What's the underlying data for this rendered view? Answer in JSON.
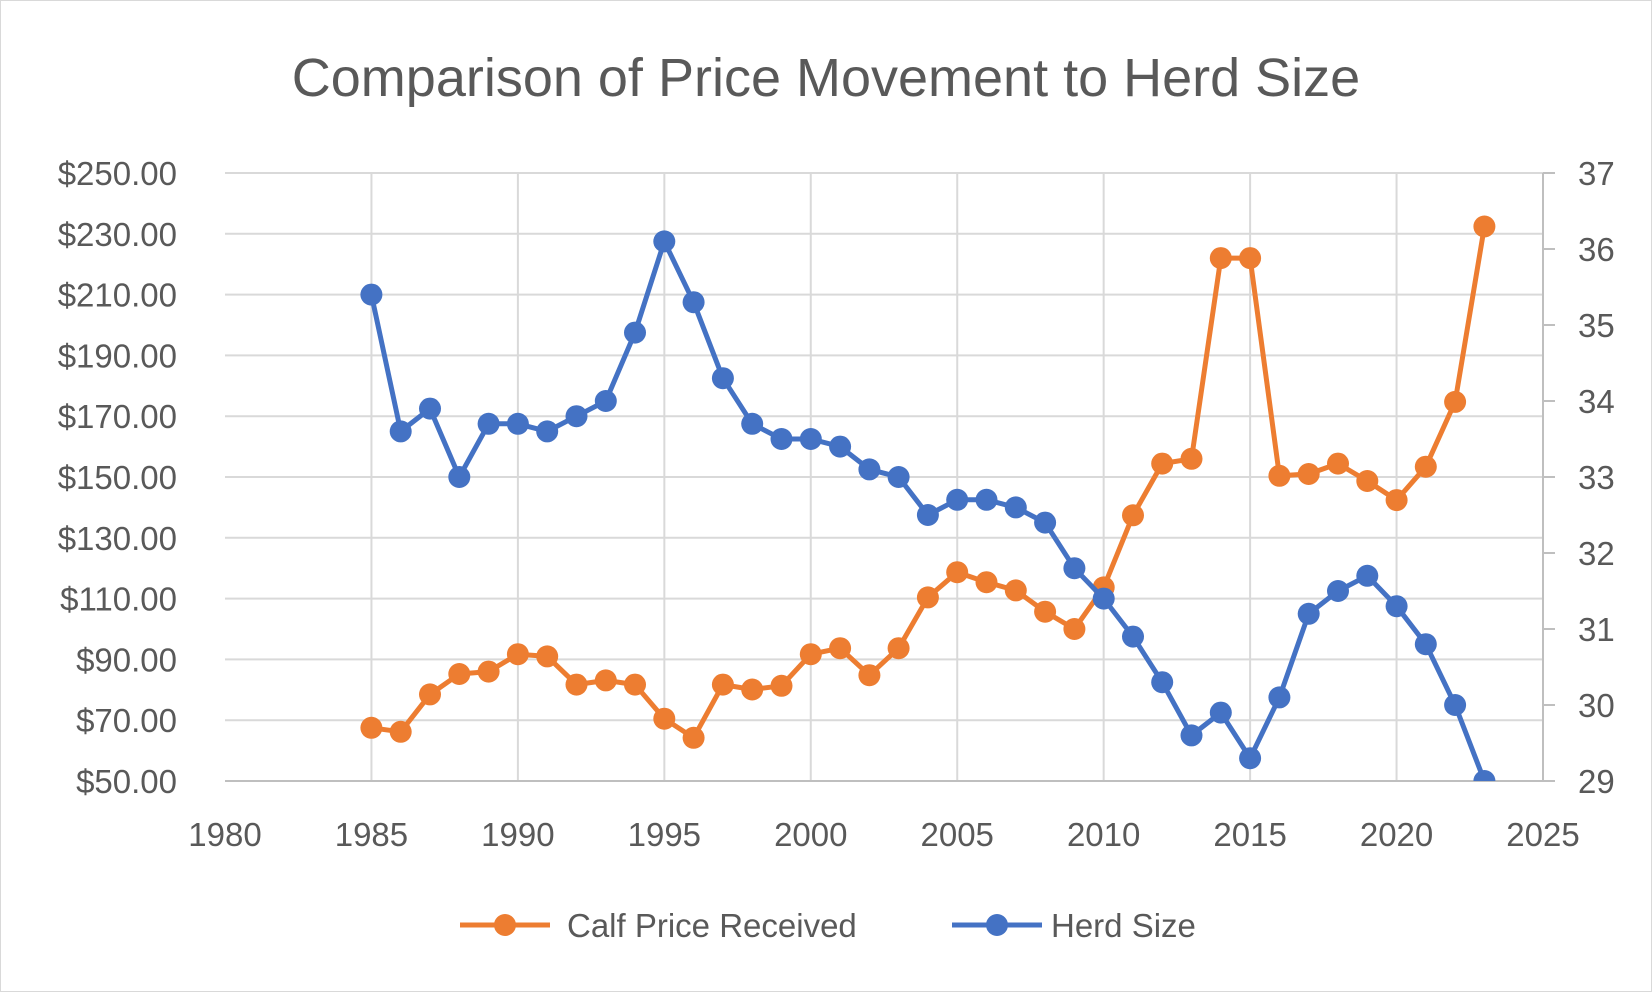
{
  "chart_data": {
    "type": "line",
    "title": "Comparison of Price Movement to Herd Size",
    "x_range": [
      1980,
      2025
    ],
    "x_ticks": [
      1980,
      1985,
      1990,
      1995,
      2000,
      2005,
      2010,
      2015,
      2020,
      2025
    ],
    "y_left": {
      "range": [
        50,
        250
      ],
      "ticks": [
        "$250.00",
        "$230.00",
        "$210.00",
        "$190.00",
        "$170.00",
        "$150.00",
        "$130.00",
        "$110.00",
        "$90.00",
        "$70.00",
        "$50.00"
      ]
    },
    "y_right": {
      "range": [
        29,
        37
      ],
      "ticks": [
        "37",
        "36",
        "35",
        "34",
        "33",
        "32",
        "31",
        "30",
        "29"
      ]
    },
    "grid": true,
    "legend_position": "bottom",
    "series": [
      {
        "name": "Calf Price Received",
        "axis": "left",
        "color": "#ED7D31",
        "points": [
          [
            1985,
            67.5
          ],
          [
            1986,
            66.2
          ],
          [
            1987,
            78.5
          ],
          [
            1988,
            85.2
          ],
          [
            1989,
            86.0
          ],
          [
            1990,
            91.7
          ],
          [
            1991,
            91.0
          ],
          [
            1992,
            81.7
          ],
          [
            1993,
            83.1
          ],
          [
            1994,
            81.7
          ],
          [
            1995,
            70.5
          ],
          [
            1996,
            64.2
          ],
          [
            1997,
            81.7
          ],
          [
            1998,
            80.1
          ],
          [
            1999,
            81.3
          ],
          [
            2000,
            91.7
          ],
          [
            2001,
            93.7
          ],
          [
            2002,
            84.8
          ],
          [
            2003,
            93.7
          ],
          [
            2004,
            110.4
          ],
          [
            2005,
            118.7
          ],
          [
            2006,
            115.4
          ],
          [
            2007,
            112.7
          ],
          [
            2008,
            105.7
          ],
          [
            2009,
            100.0
          ],
          [
            2010,
            113.7
          ],
          [
            2011,
            137.4
          ],
          [
            2012,
            154.4
          ],
          [
            2013,
            156.0
          ],
          [
            2014,
            222.0
          ],
          [
            2015,
            222.0
          ],
          [
            2016,
            150.4
          ],
          [
            2017,
            151.0
          ],
          [
            2018,
            154.4
          ],
          [
            2019,
            148.7
          ],
          [
            2020,
            142.4
          ],
          [
            2021,
            153.4
          ],
          [
            2022,
            174.7
          ],
          [
            2023,
            232.4
          ]
        ]
      },
      {
        "name": "Herd Size",
        "axis": "right",
        "color": "#4472C4",
        "points": [
          [
            1985,
            35.4
          ],
          [
            1986,
            33.6
          ],
          [
            1987,
            33.9
          ],
          [
            1988,
            33.0
          ],
          [
            1989,
            33.7
          ],
          [
            1990,
            33.7
          ],
          [
            1991,
            33.6
          ],
          [
            1992,
            33.8
          ],
          [
            1993,
            34.0
          ],
          [
            1994,
            34.9
          ],
          [
            1995,
            36.1
          ],
          [
            1996,
            35.3
          ],
          [
            1997,
            34.3
          ],
          [
            1998,
            33.7
          ],
          [
            1999,
            33.5
          ],
          [
            2000,
            33.5
          ],
          [
            2001,
            33.4
          ],
          [
            2002,
            33.1
          ],
          [
            2003,
            33.0
          ],
          [
            2004,
            32.5
          ],
          [
            2005,
            32.7
          ],
          [
            2006,
            32.7
          ],
          [
            2007,
            32.6
          ],
          [
            2008,
            32.4
          ],
          [
            2009,
            31.8
          ],
          [
            2010,
            31.4
          ],
          [
            2011,
            30.9
          ],
          [
            2012,
            30.3
          ],
          [
            2013,
            29.6
          ],
          [
            2014,
            29.9
          ],
          [
            2015,
            29.3
          ],
          [
            2016,
            30.1
          ],
          [
            2017,
            31.2
          ],
          [
            2018,
            31.5
          ],
          [
            2019,
            31.7
          ],
          [
            2020,
            31.3
          ],
          [
            2021,
            30.8
          ],
          [
            2022,
            30.0
          ],
          [
            2023,
            29.0
          ]
        ]
      }
    ]
  }
}
